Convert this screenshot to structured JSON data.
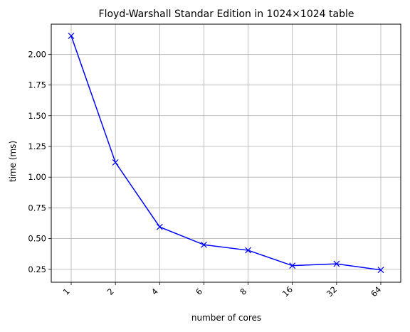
{
  "chart_data": {
    "type": "line",
    "title": "Floyd-Warshall Standar Edition in 1024×1024 table",
    "xlabel": "number of cores",
    "ylabel": "time (ms)",
    "categories": [
      "1",
      "2",
      "4",
      "6",
      "8",
      "16",
      "32",
      "64"
    ],
    "series": [
      {
        "values": [
          2.15,
          1.12,
          0.595,
          0.45,
          0.405,
          0.28,
          0.295,
          0.245
        ],
        "color": "#0000ff",
        "marker": "x"
      }
    ],
    "y_ticks": [
      0.25,
      0.5,
      0.75,
      1.0,
      1.25,
      1.5,
      1.75,
      2.0
    ],
    "y_tick_labels": [
      "0.25",
      "0.50",
      "0.75",
      "1.00",
      "1.25",
      "1.50",
      "1.75",
      "2.00"
    ],
    "ylim": [
      0.145,
      2.245
    ],
    "grid": true,
    "x_tick_rotation": 45,
    "grid_color": "#b0b0b0",
    "axis_color": "#000000"
  }
}
